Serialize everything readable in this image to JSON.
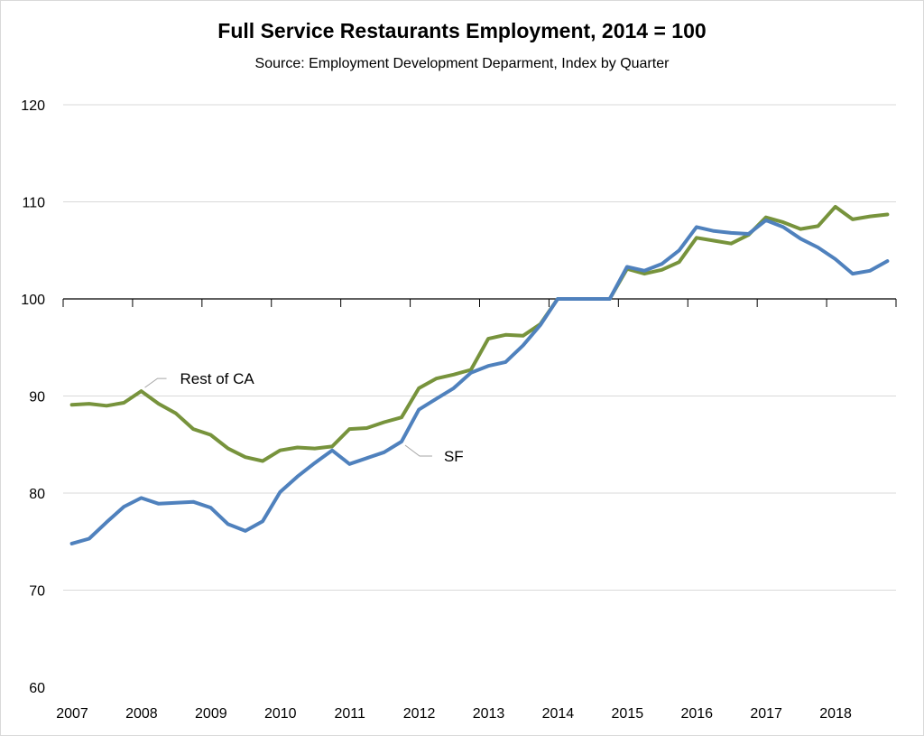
{
  "chart_data": {
    "type": "line",
    "title": "Full Service Restaurants Employment, 2014 = 100",
    "subtitle": "Source:  Employment Development Deparment, Index by Quarter",
    "xlabel": "",
    "ylabel": "",
    "ylim": [
      60,
      120
    ],
    "yticks": [
      60,
      70,
      80,
      90,
      100,
      110,
      120
    ],
    "x_tick_labels": [
      "2007",
      "2008",
      "2009",
      "2010",
      "2011",
      "2012",
      "2013",
      "2014",
      "2015",
      "2016",
      "2017",
      "2018"
    ],
    "x_start_year": 2007,
    "quarters_per_year": 4,
    "grid": true,
    "series": [
      {
        "name": "Rest of CA",
        "color": "#77933c",
        "values": [
          89.1,
          89.2,
          89.0,
          89.3,
          90.5,
          89.2,
          88.2,
          86.6,
          86.0,
          84.6,
          83.7,
          83.3,
          84.4,
          84.7,
          84.6,
          84.8,
          86.6,
          86.7,
          87.3,
          87.8,
          90.8,
          91.8,
          92.2,
          92.7,
          95.9,
          96.3,
          96.2,
          97.4,
          100.0,
          100.0,
          100.0,
          100.0,
          103.1,
          102.6,
          103.0,
          103.8,
          106.3,
          106.0,
          105.7,
          106.6,
          108.4,
          107.9,
          107.2,
          107.5,
          109.5,
          108.2,
          108.5,
          108.7
        ]
      },
      {
        "name": "SF",
        "color": "#4f81bd",
        "values": [
          74.8,
          75.3,
          77.0,
          78.6,
          79.5,
          78.9,
          79.0,
          79.1,
          78.5,
          76.8,
          76.1,
          77.1,
          80.1,
          81.7,
          83.1,
          84.4,
          83.0,
          83.6,
          84.2,
          85.3,
          88.6,
          89.7,
          90.8,
          92.4,
          93.1,
          93.5,
          95.2,
          97.3,
          100.0,
          100.0,
          100.0,
          100.0,
          103.3,
          102.9,
          103.6,
          105.0,
          107.4,
          107.0,
          106.8,
          106.7,
          108.1,
          107.4,
          106.2,
          105.3,
          104.1,
          102.6,
          102.9,
          103.9
        ]
      }
    ],
    "annotations": [
      {
        "text": "Rest of CA",
        "series": "Rest of CA"
      },
      {
        "text": "SF",
        "series": "SF"
      }
    ]
  }
}
